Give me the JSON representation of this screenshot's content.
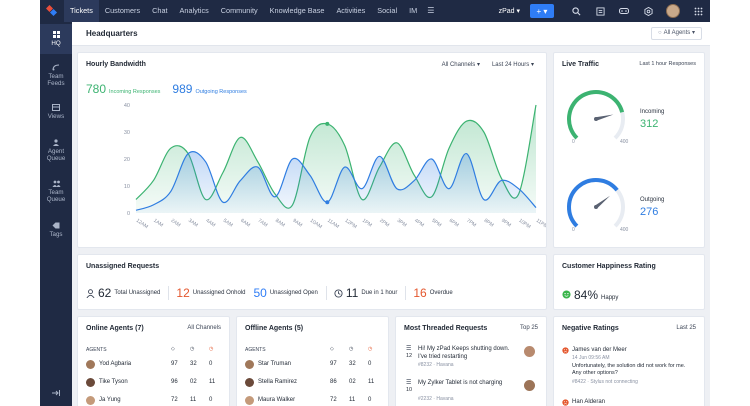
{
  "topnav": {
    "items": [
      "Tickets",
      "Customers",
      "Chat",
      "Analytics",
      "Community",
      "Knowledge Base",
      "Activities",
      "Social",
      "IM"
    ],
    "more": "☰",
    "workspace": "zPad ▾",
    "add": "+ ▾"
  },
  "sidebar": {
    "items": [
      "HQ",
      "Team Feeds",
      "Views",
      "Agent Queue",
      "Team Queue",
      "Tags"
    ]
  },
  "header": {
    "title": "Headquarters",
    "agents_filter": "All Agents ▾"
  },
  "bandwidth": {
    "title": "Hourly Bandwidth",
    "channel_filter": "All Channels ▾",
    "range_filter": "Last 24 Hours ▾",
    "incoming_value": "780",
    "incoming_label": "Incoming Responses",
    "outgoing_value": "989",
    "outgoing_label": "Outgoing Responses"
  },
  "chart_data": {
    "type": "area",
    "x": [
      "12AM",
      "1AM",
      "2AM",
      "3AM",
      "4AM",
      "5AM",
      "6AM",
      "7AM",
      "8AM",
      "9AM",
      "10AM",
      "11AM",
      "12PM",
      "1PM",
      "2PM",
      "3PM",
      "4PM",
      "5PM",
      "6PM",
      "7PM",
      "8PM",
      "9PM",
      "10PM",
      "11PM"
    ],
    "series": [
      {
        "name": "Incoming Responses",
        "color": "#3cb371",
        "values": [
          5,
          12,
          24,
          22,
          5,
          15,
          28,
          19,
          7,
          3,
          28,
          33,
          25,
          5,
          17,
          26,
          14,
          6,
          24,
          34,
          30,
          13,
          7,
          40
        ]
      },
      {
        "name": "Outgoing Responses",
        "color": "#2f7de1",
        "values": [
          1,
          3,
          8,
          22,
          19,
          4,
          12,
          17,
          6,
          20,
          14,
          4,
          17,
          9,
          21,
          9,
          12,
          20,
          9,
          22,
          5,
          12,
          9,
          2
        ]
      }
    ],
    "ylim": [
      0,
      40
    ],
    "yticks": [
      0,
      10,
      20,
      30,
      40
    ]
  },
  "live_traffic": {
    "title": "Live Traffic",
    "range": "Last 1 hour Responses",
    "incoming_label": "Incoming",
    "incoming_value": "312",
    "outgoing_label": "Outgoing",
    "outgoing_value": "276",
    "gauge_min": "0",
    "gauge_max": "400",
    "incoming_fraction": 0.78,
    "outgoing_fraction": 0.69
  },
  "unassigned": {
    "title": "Unassigned Requests",
    "total_value": "62",
    "total_label": "Total Unassigned",
    "onhold_value": "12",
    "onhold_label": "Unassigned Onhold",
    "open_value": "50",
    "open_label": "Unassigned Open",
    "due_value": "11",
    "due_label": "Due in 1 hour",
    "overdue_value": "16",
    "overdue_label": "Overdue"
  },
  "happiness": {
    "title": "Customer Happiness Rating",
    "value": "84%",
    "label": "Happy"
  },
  "online_agents": {
    "title": "Online Agents (7)",
    "filter": "All Channels",
    "col_label": "AGENTS",
    "rows": [
      {
        "name": "Yod Agbaria",
        "a": "97",
        "b": "32",
        "c": "0"
      },
      {
        "name": "Tike Tyson",
        "a": "96",
        "b": "02",
        "c": "11"
      },
      {
        "name": "Ja Yung",
        "a": "72",
        "b": "11",
        "c": "0"
      }
    ]
  },
  "offline_agents": {
    "title": "Offline Agents (5)",
    "col_label": "AGENTS",
    "rows": [
      {
        "name": "Star Truman",
        "a": "97",
        "b": "32",
        "c": "0"
      },
      {
        "name": "Stella Ramirez",
        "a": "86",
        "b": "02",
        "c": "11"
      },
      {
        "name": "Maura Walker",
        "a": "72",
        "b": "11",
        "c": "0"
      }
    ]
  },
  "threaded": {
    "title": "Most Threaded Requests",
    "filter": "Top 25",
    "items": [
      {
        "title": "Hi! My zPad Keeps shutting down. I've tried restarting",
        "count": "12",
        "meta": "#8232 · Havana"
      },
      {
        "title": "My Zylker Tablet is not charging",
        "count": "10",
        "meta": "#2232 · Havana"
      }
    ]
  },
  "negative": {
    "title": "Negative Ratings",
    "filter": "Last 25",
    "items": [
      {
        "name": "James van der Meer",
        "date": "14 Jun 09:56 AM",
        "text": "Unfortunately, the solution did not work for me. Any other options?",
        "meta": "#8422 · Stylus not connecting"
      },
      {
        "name": "Han Alderan",
        "date": "",
        "text": "",
        "meta": ""
      }
    ]
  },
  "colors": {
    "nav_bg": "#1f2a44",
    "accent_blue": "#2f7df6",
    "incoming_green": "#3cb371",
    "outgoing_blue": "#2f7de1",
    "onhold_red": "#e4572e",
    "overdue_red": "#e4572e",
    "happy_green": "#39b54a"
  }
}
